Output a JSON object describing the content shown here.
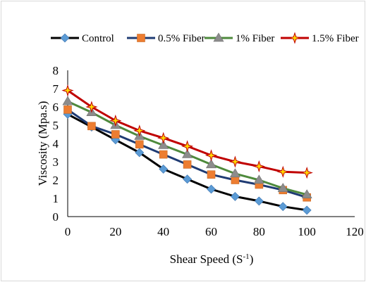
{
  "chart_data": {
    "type": "line",
    "title": "",
    "xlabel": "Shear Speed (S",
    "xlabel_sup": "-1",
    "xlabel_suffix": ")",
    "ylabel": "Viscosity (Mpa.s)",
    "xlim": [
      0,
      120
    ],
    "ylim": [
      0,
      8
    ],
    "xticks": [
      "0",
      "20",
      "40",
      "60",
      "80",
      "100",
      "120"
    ],
    "yticks": [
      "0",
      "1",
      "2",
      "3",
      "4",
      "5",
      "6",
      "7",
      "8"
    ],
    "grid": false,
    "legend_position": "top",
    "x": [
      0,
      10,
      20,
      30,
      40,
      50,
      60,
      70,
      80,
      90,
      100
    ],
    "series": [
      {
        "name": "Control",
        "color": "#000000",
        "marker": "diamond",
        "marker_color": "#5b9bd5",
        "values": [
          5.6,
          4.9,
          4.2,
          3.5,
          2.6,
          2.05,
          1.5,
          1.1,
          0.85,
          0.55,
          0.35
        ]
      },
      {
        "name": "0.5% Fiber",
        "color": "#1f3b73",
        "marker": "square",
        "marker_color": "#ed7d31",
        "values": [
          5.85,
          4.95,
          4.5,
          3.95,
          3.4,
          2.85,
          2.3,
          2.0,
          1.75,
          1.45,
          1.05
        ]
      },
      {
        "name": "1% Fiber",
        "color": "#4e8a3c",
        "marker": "triangle",
        "marker_color": "#8c8c8c",
        "values": [
          6.3,
          5.7,
          5.0,
          4.4,
          3.9,
          3.4,
          2.85,
          2.35,
          2.0,
          1.55,
          1.2
        ]
      },
      {
        "name": "1.5% Fiber",
        "color": "#c00000",
        "marker": "star",
        "marker_color": "#ffd700",
        "values": [
          6.9,
          6.0,
          5.25,
          4.7,
          4.3,
          3.85,
          3.35,
          3.0,
          2.75,
          2.45,
          2.4
        ]
      }
    ]
  }
}
